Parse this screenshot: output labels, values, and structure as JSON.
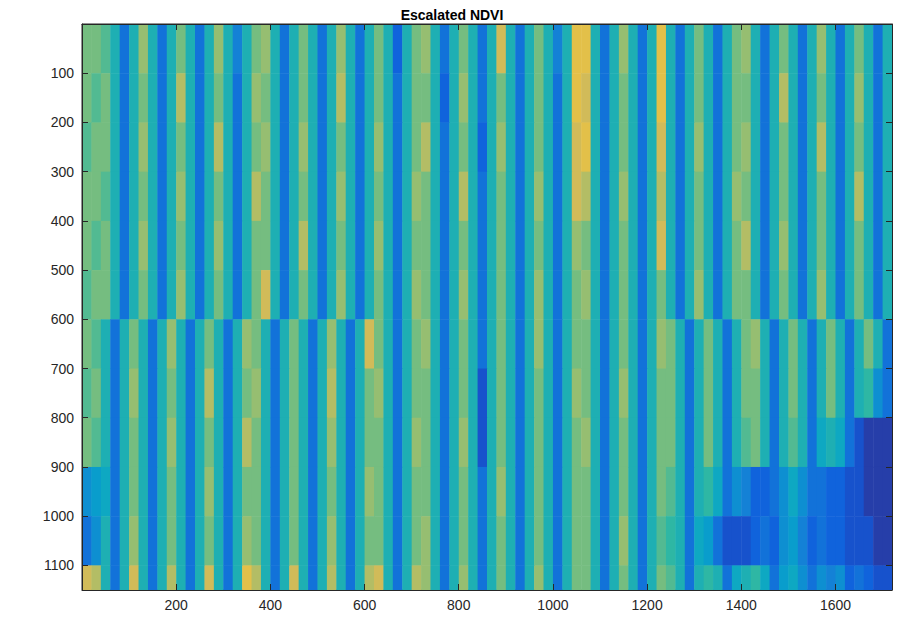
{
  "chart_data": {
    "type": "heatmap",
    "title": "Escalated NDVI",
    "xlim": [
      0,
      1720
    ],
    "ylim": [
      0,
      1150
    ],
    "xticks": [
      200,
      400,
      600,
      800,
      1000,
      1200,
      1400,
      1600
    ],
    "yticks": [
      100,
      200,
      300,
      400,
      500,
      600,
      700,
      800,
      900,
      1000,
      1100
    ],
    "color_range": [
      0,
      1
    ],
    "x_edges": [
      0,
      20,
      40,
      60,
      80,
      100,
      120,
      140,
      160,
      180,
      200,
      220,
      240,
      260,
      280,
      300,
      320,
      340,
      360,
      380,
      400,
      420,
      440,
      460,
      480,
      500,
      520,
      540,
      560,
      580,
      600,
      620,
      640,
      660,
      680,
      700,
      720,
      740,
      760,
      780,
      800,
      820,
      840,
      860,
      880,
      900,
      920,
      940,
      960,
      980,
      1000,
      1020,
      1040,
      1060,
      1080,
      1100,
      1120,
      1140,
      1160,
      1180,
      1200,
      1220,
      1240,
      1260,
      1280,
      1300,
      1320,
      1340,
      1360,
      1380,
      1400,
      1420,
      1440,
      1460,
      1480,
      1500,
      1520,
      1540,
      1560,
      1580,
      1600,
      1620,
      1640,
      1660,
      1680,
      1700,
      1720
    ],
    "y_edges": [
      0,
      100,
      200,
      300,
      400,
      500,
      600,
      700,
      800,
      900,
      1000,
      1100,
      1150
    ],
    "cells": [
      [
        0.6,
        0.6,
        0.55,
        0.45,
        0.2,
        0.45,
        0.65,
        0.45,
        0.2,
        0.45,
        0.6,
        0.45,
        0.2,
        0.45,
        0.65,
        0.45,
        0.25,
        0.45,
        0.6,
        0.65,
        0.45,
        0.2,
        0.45,
        0.6,
        0.45,
        0.2,
        0.45,
        0.65,
        0.45,
        0.2,
        0.45,
        0.6,
        0.45,
        0.15,
        0.45,
        0.6,
        0.65,
        0.45,
        0.2,
        0.45,
        0.6,
        0.45,
        0.2,
        0.45,
        0.75,
        0.45,
        0.2,
        0.45,
        0.6,
        0.45,
        0.25,
        0.45,
        0.8,
        0.8,
        0.45,
        0.2,
        0.45,
        0.65,
        0.45,
        0.2,
        0.45,
        0.8,
        0.45,
        0.2,
        0.45,
        0.6,
        0.45,
        0.2,
        0.45,
        0.6,
        0.65,
        0.45,
        0.2,
        0.45,
        0.6,
        0.45,
        0.2,
        0.45,
        0.65,
        0.45,
        0.2,
        0.45,
        0.6,
        0.45,
        0.2,
        0.45
      ],
      [
        0.6,
        0.55,
        0.6,
        0.45,
        0.2,
        0.45,
        0.6,
        0.45,
        0.2,
        0.45,
        0.7,
        0.45,
        0.2,
        0.45,
        0.6,
        0.45,
        0.2,
        0.45,
        0.65,
        0.6,
        0.45,
        0.2,
        0.45,
        0.6,
        0.45,
        0.2,
        0.45,
        0.7,
        0.45,
        0.2,
        0.45,
        0.6,
        0.45,
        0.2,
        0.45,
        0.6,
        0.6,
        0.45,
        0.15,
        0.45,
        0.65,
        0.45,
        0.2,
        0.45,
        0.6,
        0.45,
        0.2,
        0.45,
        0.6,
        0.45,
        0.2,
        0.45,
        0.8,
        0.75,
        0.45,
        0.2,
        0.45,
        0.6,
        0.45,
        0.2,
        0.45,
        0.8,
        0.45,
        0.2,
        0.45,
        0.6,
        0.45,
        0.2,
        0.45,
        0.6,
        0.6,
        0.45,
        0.2,
        0.45,
        0.7,
        0.45,
        0.2,
        0.45,
        0.6,
        0.45,
        0.2,
        0.45,
        0.65,
        0.45,
        0.2,
        0.45
      ],
      [
        0.55,
        0.6,
        0.6,
        0.45,
        0.2,
        0.45,
        0.65,
        0.45,
        0.2,
        0.45,
        0.6,
        0.45,
        0.2,
        0.45,
        0.7,
        0.45,
        0.2,
        0.45,
        0.6,
        0.65,
        0.45,
        0.2,
        0.45,
        0.65,
        0.45,
        0.2,
        0.45,
        0.6,
        0.45,
        0.2,
        0.45,
        0.65,
        0.45,
        0.2,
        0.45,
        0.6,
        0.7,
        0.45,
        0.2,
        0.45,
        0.6,
        0.45,
        0.15,
        0.45,
        0.65,
        0.45,
        0.2,
        0.45,
        0.6,
        0.45,
        0.2,
        0.45,
        0.75,
        0.8,
        0.45,
        0.2,
        0.45,
        0.6,
        0.45,
        0.2,
        0.45,
        0.75,
        0.45,
        0.2,
        0.45,
        0.65,
        0.45,
        0.2,
        0.45,
        0.6,
        0.65,
        0.45,
        0.2,
        0.45,
        0.6,
        0.45,
        0.2,
        0.45,
        0.7,
        0.45,
        0.2,
        0.45,
        0.6,
        0.45,
        0.2,
        0.45
      ],
      [
        0.6,
        0.6,
        0.55,
        0.45,
        0.2,
        0.45,
        0.6,
        0.45,
        0.2,
        0.45,
        0.65,
        0.45,
        0.2,
        0.45,
        0.6,
        0.45,
        0.2,
        0.45,
        0.7,
        0.6,
        0.45,
        0.2,
        0.45,
        0.6,
        0.45,
        0.2,
        0.45,
        0.65,
        0.45,
        0.2,
        0.45,
        0.6,
        0.45,
        0.2,
        0.45,
        0.65,
        0.6,
        0.45,
        0.2,
        0.45,
        0.7,
        0.45,
        0.2,
        0.45,
        0.6,
        0.45,
        0.2,
        0.45,
        0.65,
        0.45,
        0.2,
        0.45,
        0.75,
        0.7,
        0.45,
        0.2,
        0.45,
        0.65,
        0.45,
        0.2,
        0.45,
        0.7,
        0.45,
        0.2,
        0.45,
        0.6,
        0.45,
        0.2,
        0.45,
        0.65,
        0.6,
        0.45,
        0.2,
        0.45,
        0.6,
        0.45,
        0.2,
        0.45,
        0.6,
        0.45,
        0.2,
        0.45,
        0.7,
        0.45,
        0.2,
        0.45
      ],
      [
        0.6,
        0.55,
        0.6,
        0.45,
        0.2,
        0.45,
        0.65,
        0.45,
        0.2,
        0.45,
        0.6,
        0.45,
        0.2,
        0.45,
        0.65,
        0.45,
        0.2,
        0.45,
        0.6,
        0.6,
        0.45,
        0.2,
        0.45,
        0.7,
        0.45,
        0.2,
        0.45,
        0.6,
        0.45,
        0.2,
        0.45,
        0.65,
        0.45,
        0.2,
        0.45,
        0.6,
        0.6,
        0.45,
        0.2,
        0.45,
        0.6,
        0.45,
        0.2,
        0.45,
        0.6,
        0.45,
        0.2,
        0.45,
        0.6,
        0.45,
        0.2,
        0.45,
        0.65,
        0.6,
        0.45,
        0.2,
        0.45,
        0.6,
        0.45,
        0.2,
        0.45,
        0.75,
        0.45,
        0.2,
        0.45,
        0.6,
        0.45,
        0.2,
        0.45,
        0.6,
        0.7,
        0.45,
        0.2,
        0.45,
        0.65,
        0.45,
        0.2,
        0.45,
        0.6,
        0.45,
        0.2,
        0.45,
        0.6,
        0.45,
        0.2,
        0.45
      ],
      [
        0.55,
        0.6,
        0.6,
        0.45,
        0.2,
        0.45,
        0.6,
        0.45,
        0.2,
        0.45,
        0.65,
        0.45,
        0.2,
        0.45,
        0.6,
        0.45,
        0.2,
        0.45,
        0.6,
        0.75,
        0.45,
        0.2,
        0.45,
        0.6,
        0.45,
        0.2,
        0.45,
        0.65,
        0.45,
        0.2,
        0.45,
        0.6,
        0.45,
        0.2,
        0.45,
        0.65,
        0.6,
        0.45,
        0.2,
        0.45,
        0.65,
        0.45,
        0.2,
        0.45,
        0.6,
        0.45,
        0.2,
        0.45,
        0.65,
        0.45,
        0.2,
        0.45,
        0.6,
        0.65,
        0.45,
        0.2,
        0.45,
        0.6,
        0.45,
        0.2,
        0.45,
        0.6,
        0.45,
        0.2,
        0.45,
        0.65,
        0.45,
        0.2,
        0.45,
        0.6,
        0.6,
        0.45,
        0.2,
        0.45,
        0.6,
        0.45,
        0.2,
        0.45,
        0.65,
        0.45,
        0.2,
        0.45,
        0.6,
        0.45,
        0.2,
        0.45
      ],
      [
        0.6,
        0.55,
        0.45,
        0.2,
        0.45,
        0.6,
        0.45,
        0.2,
        0.45,
        0.65,
        0.45,
        0.2,
        0.45,
        0.6,
        0.45,
        0.2,
        0.45,
        0.65,
        0.6,
        0.45,
        0.2,
        0.45,
        0.6,
        0.45,
        0.2,
        0.45,
        0.65,
        0.45,
        0.2,
        0.45,
        0.75,
        0.6,
        0.45,
        0.2,
        0.45,
        0.6,
        0.65,
        0.45,
        0.2,
        0.45,
        0.6,
        0.45,
        0.2,
        0.45,
        0.6,
        0.45,
        0.2,
        0.45,
        0.65,
        0.45,
        0.2,
        0.45,
        0.6,
        0.6,
        0.45,
        0.2,
        0.45,
        0.6,
        0.45,
        0.2,
        0.45,
        0.65,
        0.6,
        0.45,
        0.2,
        0.45,
        0.6,
        0.45,
        0.2,
        0.45,
        0.6,
        0.65,
        0.45,
        0.2,
        0.45,
        0.6,
        0.45,
        0.2,
        0.45,
        0.6,
        0.45,
        0.2,
        0.45,
        0.6,
        0.45,
        0.2
      ],
      [
        0.55,
        0.6,
        0.45,
        0.2,
        0.45,
        0.65,
        0.45,
        0.2,
        0.45,
        0.6,
        0.45,
        0.2,
        0.45,
        0.7,
        0.45,
        0.2,
        0.45,
        0.6,
        0.65,
        0.45,
        0.2,
        0.45,
        0.6,
        0.45,
        0.2,
        0.45,
        0.7,
        0.45,
        0.2,
        0.45,
        0.6,
        0.65,
        0.45,
        0.2,
        0.45,
        0.6,
        0.6,
        0.45,
        0.2,
        0.45,
        0.6,
        0.45,
        0.1,
        0.45,
        0.6,
        0.45,
        0.2,
        0.45,
        0.6,
        0.45,
        0.2,
        0.45,
        0.65,
        0.6,
        0.45,
        0.2,
        0.45,
        0.65,
        0.45,
        0.2,
        0.45,
        0.6,
        0.6,
        0.45,
        0.2,
        0.45,
        0.6,
        0.45,
        0.2,
        0.45,
        0.6,
        0.6,
        0.45,
        0.2,
        0.45,
        0.6,
        0.45,
        0.2,
        0.45,
        0.6,
        0.45,
        0.2,
        0.45,
        0.5,
        0.3,
        0.2
      ],
      [
        0.6,
        0.55,
        0.45,
        0.2,
        0.45,
        0.6,
        0.45,
        0.2,
        0.45,
        0.65,
        0.45,
        0.2,
        0.45,
        0.6,
        0.45,
        0.2,
        0.45,
        0.7,
        0.6,
        0.45,
        0.2,
        0.45,
        0.6,
        0.45,
        0.2,
        0.45,
        0.65,
        0.45,
        0.2,
        0.45,
        0.6,
        0.6,
        0.45,
        0.2,
        0.45,
        0.65,
        0.6,
        0.45,
        0.2,
        0.45,
        0.65,
        0.45,
        0.1,
        0.45,
        0.6,
        0.45,
        0.2,
        0.45,
        0.6,
        0.45,
        0.2,
        0.45,
        0.6,
        0.65,
        0.45,
        0.2,
        0.45,
        0.6,
        0.45,
        0.2,
        0.45,
        0.6,
        0.6,
        0.45,
        0.2,
        0.45,
        0.6,
        0.45,
        0.2,
        0.45,
        0.55,
        0.6,
        0.45,
        0.2,
        0.45,
        0.55,
        0.45,
        0.2,
        0.4,
        0.45,
        0.4,
        0.2,
        0.1,
        0.05,
        0.05,
        0.05
      ],
      [
        0.3,
        0.35,
        0.4,
        0.2,
        0.45,
        0.6,
        0.45,
        0.2,
        0.45,
        0.6,
        0.45,
        0.2,
        0.45,
        0.65,
        0.45,
        0.2,
        0.45,
        0.6,
        0.6,
        0.45,
        0.2,
        0.45,
        0.6,
        0.45,
        0.2,
        0.45,
        0.6,
        0.45,
        0.2,
        0.45,
        0.65,
        0.6,
        0.45,
        0.2,
        0.45,
        0.6,
        0.6,
        0.45,
        0.2,
        0.45,
        0.6,
        0.45,
        0.2,
        0.45,
        0.65,
        0.45,
        0.2,
        0.45,
        0.6,
        0.45,
        0.2,
        0.45,
        0.6,
        0.6,
        0.45,
        0.2,
        0.45,
        0.6,
        0.45,
        0.2,
        0.45,
        0.6,
        0.55,
        0.45,
        0.2,
        0.45,
        0.5,
        0.4,
        0.2,
        0.3,
        0.25,
        0.15,
        0.15,
        0.2,
        0.3,
        0.4,
        0.3,
        0.2,
        0.2,
        0.15,
        0.15,
        0.1,
        0.1,
        0.05,
        0.05,
        0.05
      ],
      [
        0.2,
        0.3,
        0.45,
        0.2,
        0.45,
        0.65,
        0.45,
        0.2,
        0.45,
        0.6,
        0.45,
        0.2,
        0.45,
        0.6,
        0.45,
        0.2,
        0.45,
        0.65,
        0.6,
        0.45,
        0.2,
        0.45,
        0.6,
        0.45,
        0.2,
        0.45,
        0.65,
        0.45,
        0.2,
        0.45,
        0.6,
        0.6,
        0.45,
        0.2,
        0.45,
        0.6,
        0.65,
        0.45,
        0.2,
        0.45,
        0.6,
        0.45,
        0.2,
        0.45,
        0.6,
        0.45,
        0.2,
        0.45,
        0.6,
        0.45,
        0.2,
        0.45,
        0.6,
        0.6,
        0.45,
        0.2,
        0.45,
        0.65,
        0.45,
        0.2,
        0.45,
        0.55,
        0.5,
        0.45,
        0.2,
        0.4,
        0.35,
        0.2,
        0.1,
        0.1,
        0.1,
        0.15,
        0.2,
        0.15,
        0.3,
        0.35,
        0.25,
        0.15,
        0.2,
        0.15,
        0.15,
        0.1,
        0.1,
        0.1,
        0.05,
        0.05
      ],
      [
        0.75,
        0.7,
        0.45,
        0.2,
        0.45,
        0.75,
        0.45,
        0.2,
        0.45,
        0.7,
        0.45,
        0.2,
        0.45,
        0.75,
        0.45,
        0.2,
        0.45,
        0.8,
        0.7,
        0.45,
        0.2,
        0.45,
        0.75,
        0.45,
        0.2,
        0.45,
        0.7,
        0.45,
        0.2,
        0.45,
        0.7,
        0.75,
        0.45,
        0.2,
        0.45,
        0.7,
        0.65,
        0.45,
        0.2,
        0.45,
        0.65,
        0.45,
        0.2,
        0.45,
        0.6,
        0.45,
        0.2,
        0.45,
        0.65,
        0.45,
        0.2,
        0.45,
        0.6,
        0.6,
        0.45,
        0.2,
        0.45,
        0.6,
        0.45,
        0.2,
        0.45,
        0.6,
        0.55,
        0.45,
        0.2,
        0.45,
        0.5,
        0.45,
        0.2,
        0.4,
        0.45,
        0.5,
        0.4,
        0.2,
        0.35,
        0.4,
        0.3,
        0.2,
        0.3,
        0.25,
        0.3,
        0.15,
        0.2,
        0.15,
        0.1,
        0.1
      ]
    ]
  }
}
